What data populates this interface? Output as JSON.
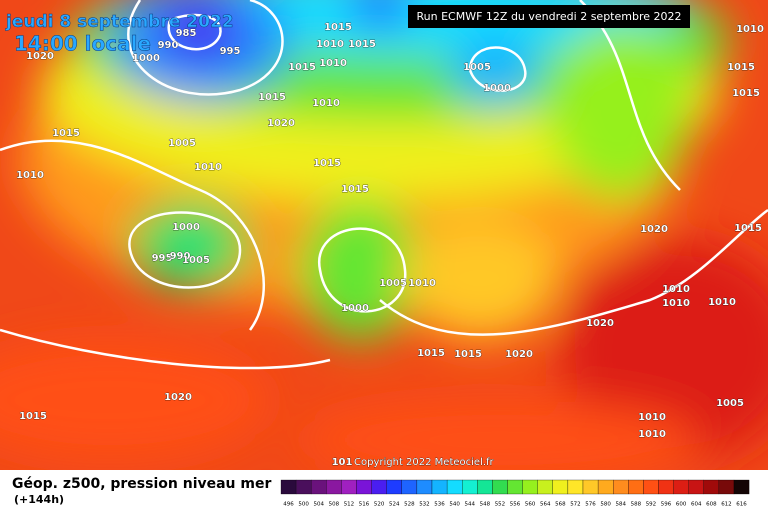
{
  "header": {
    "date": "jeudi 8 septembre 2022",
    "time": "14:00 locale",
    "run": "Run ECMWF 12Z du vendredi 2 septembre 2022"
  },
  "isobar_labels": [
    "1015",
    "1010",
    "1015",
    "985",
    "990",
    "995",
    "1000",
    "1020",
    "1015",
    "1010",
    "1005",
    "1000",
    "1015",
    "1010",
    "1020",
    "1015",
    "1005",
    "1010",
    "1010",
    "1015",
    "1015",
    "1000",
    "995",
    "990",
    "1005",
    "1005",
    "1010",
    "1000",
    "1020",
    "1010",
    "1010",
    "1010",
    "1020",
    "1015",
    "1015",
    "1020",
    "1020",
    "1015",
    "1005",
    "1010",
    "1010",
    "1015",
    "1015",
    "1010",
    "1015",
    "101"
  ],
  "footer": {
    "title": "Géop. z500, pression niveau mer",
    "lead": "(+144h)",
    "copyright": "Copyright 2022 Meteociel.fr"
  },
  "scale": {
    "labels": [
      "496",
      "500",
      "504",
      "508",
      "512",
      "516",
      "520",
      "524",
      "528",
      "532",
      "536",
      "540",
      "544",
      "548",
      "552",
      "556",
      "560",
      "564",
      "568",
      "572",
      "576",
      "580",
      "584",
      "588",
      "592",
      "596",
      "600",
      "604",
      "608",
      "612",
      "616"
    ],
    "colors": [
      "#2a0a3c",
      "#4a0f5c",
      "#6a127c",
      "#8a18a0",
      "#a020c0",
      "#7a14d8",
      "#4a1ef0",
      "#1e3cff",
      "#1e64ff",
      "#1e8cff",
      "#14b4ff",
      "#14dcff",
      "#14f0d2",
      "#14e696",
      "#32dc50",
      "#64e632",
      "#96f01e",
      "#c8f01e",
      "#f0f01e",
      "#ffe628",
      "#ffc828",
      "#ffaa1e",
      "#ff8c1e",
      "#ff6e14",
      "#ff5014",
      "#f03214",
      "#dc1e14",
      "#c81414",
      "#a00a0a",
      "#780a0a",
      "#140505"
    ]
  }
}
